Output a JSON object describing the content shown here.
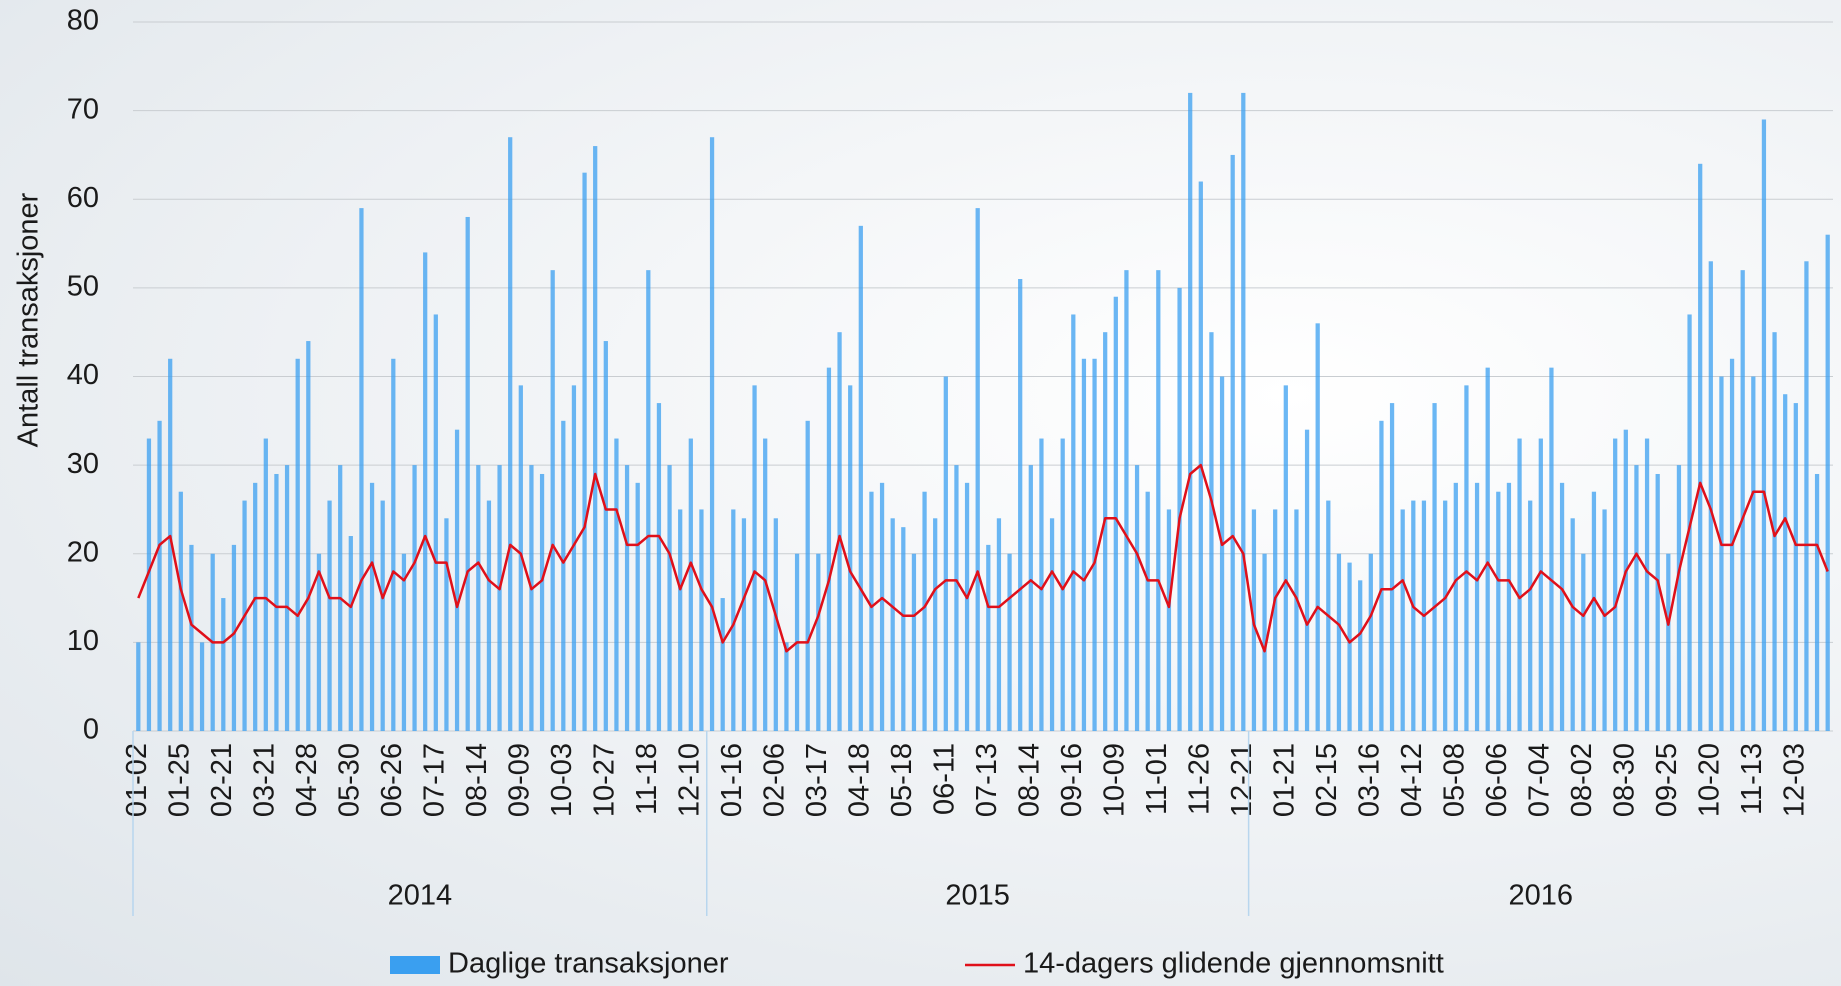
{
  "chart_data": {
    "type": "bar_line",
    "y_axis_label": "Antall transaksjoner",
    "categories": [
      "01-02",
      null,
      null,
      null,
      "01-25",
      null,
      null,
      null,
      "02-21",
      null,
      null,
      null,
      "03-21",
      null,
      null,
      null,
      "04-28",
      null,
      null,
      null,
      "05-30",
      null,
      null,
      null,
      "06-26",
      null,
      null,
      null,
      "07-17",
      null,
      null,
      null,
      "08-14",
      null,
      null,
      null,
      "09-09",
      null,
      null,
      null,
      "10-03",
      null,
      null,
      null,
      "10-27",
      null,
      null,
      null,
      "11-18",
      null,
      null,
      null,
      "12-10",
      null,
      null,
      null,
      "01-16",
      null,
      null,
      null,
      "02-06",
      null,
      null,
      null,
      "03-17",
      null,
      null,
      null,
      "04-18",
      null,
      null,
      null,
      "05-18",
      null,
      null,
      null,
      "06-11",
      null,
      null,
      null,
      "07-13",
      null,
      null,
      null,
      "08-14",
      null,
      null,
      null,
      "09-16",
      null,
      null,
      null,
      "10-09",
      null,
      null,
      null,
      "11-01",
      null,
      null,
      null,
      "11-26",
      null,
      null,
      null,
      "12-21",
      null,
      null,
      null,
      "01-21",
      null,
      null,
      null,
      "02-15",
      null,
      null,
      null,
      "03-16",
      null,
      null,
      null,
      "04-12",
      null,
      null,
      null,
      "05-08",
      null,
      null,
      null,
      "06-06",
      null,
      null,
      null,
      "07-04",
      null,
      null,
      null,
      "08-02",
      null,
      null,
      null,
      "08-30",
      null,
      null,
      null,
      "09-25",
      null,
      null,
      null,
      "10-20",
      null,
      null,
      null,
      "11-13",
      null,
      null,
      null,
      "12-03",
      null,
      null,
      null
    ],
    "year_groups": [
      {
        "label": "2014",
        "from": 0,
        "to": 53
      },
      {
        "label": "2015",
        "from": 54,
        "to": 104
      },
      {
        "label": "2016",
        "from": 105,
        "to": 159
      }
    ],
    "series": [
      {
        "name": "Daglige transaksjoner",
        "type": "bar",
        "color": "#3a9ff0",
        "values": [
          10,
          33,
          35,
          42,
          27,
          21,
          10,
          20,
          15,
          21,
          26,
          28,
          33,
          29,
          30,
          42,
          44,
          20,
          26,
          30,
          22,
          59,
          28,
          26,
          42,
          20,
          30,
          54,
          47,
          24,
          34,
          58,
          30,
          26,
          30,
          67,
          39,
          30,
          29,
          52,
          35,
          39,
          63,
          66,
          44,
          33,
          30,
          28,
          52,
          37,
          30,
          25,
          33,
          25,
          67,
          15,
          25,
          24,
          39,
          33,
          24,
          10,
          20,
          35,
          20,
          41,
          45,
          39,
          57,
          27,
          28,
          24,
          23,
          20,
          27,
          24,
          40,
          30,
          28,
          59,
          21,
          24,
          20,
          51,
          30,
          33,
          24,
          33,
          47,
          42,
          42,
          45,
          49,
          52,
          30,
          27,
          52,
          25,
          50,
          72,
          62,
          45,
          40,
          65,
          72,
          25,
          20,
          25,
          39,
          25,
          34,
          46,
          26,
          20,
          19,
          17,
          20,
          35,
          37,
          25,
          26,
          26,
          37,
          26,
          28,
          39,
          28,
          41,
          27,
          28,
          33,
          26,
          33,
          41,
          28,
          24,
          20,
          27,
          25,
          33,
          34,
          30,
          33,
          29,
          20,
          30,
          47,
          64,
          53,
          40,
          42,
          52,
          40,
          69,
          45,
          38,
          37,
          53,
          29,
          56
        ]
      },
      {
        "name": "14-dagers glidende gjennomsnitt",
        "type": "line",
        "color": "#e0101a",
        "values": [
          15,
          18,
          21,
          22,
          16,
          12,
          11,
          10,
          10,
          11,
          13,
          15,
          15,
          14,
          14,
          13,
          15,
          18,
          15,
          15,
          14,
          17,
          19,
          15,
          18,
          17,
          19,
          22,
          19,
          19,
          14,
          18,
          19,
          17,
          16,
          21,
          20,
          16,
          17,
          21,
          19,
          21,
          23,
          29,
          25,
          25,
          21,
          21,
          22,
          22,
          20,
          16,
          19,
          16,
          14,
          10,
          12,
          15,
          18,
          17,
          13,
          9,
          10,
          10,
          13,
          17,
          22,
          18,
          16,
          14,
          15,
          14,
          13,
          13,
          14,
          16,
          17,
          17,
          15,
          18,
          14,
          14,
          15,
          16,
          17,
          16,
          18,
          16,
          18,
          17,
          19,
          24,
          24,
          22,
          20,
          17,
          17,
          14,
          24,
          29,
          30,
          26,
          21,
          22,
          20,
          12,
          9,
          15,
          17,
          15,
          12,
          14,
          13,
          12,
          10,
          11,
          13,
          16,
          16,
          17,
          14,
          13,
          14,
          15,
          17,
          18,
          17,
          19,
          17,
          17,
          15,
          16,
          18,
          17,
          16,
          14,
          13,
          15,
          13,
          14,
          18,
          20,
          18,
          17,
          12,
          18,
          23,
          28,
          25,
          21,
          21,
          24,
          27,
          27,
          22,
          24,
          21,
          21,
          21,
          18
        ]
      }
    ],
    "ylim": [
      0,
      80
    ],
    "yticks": [
      0,
      10,
      20,
      30,
      40,
      50,
      60,
      70,
      80
    ],
    "grid": true,
    "legend": "bottom"
  }
}
